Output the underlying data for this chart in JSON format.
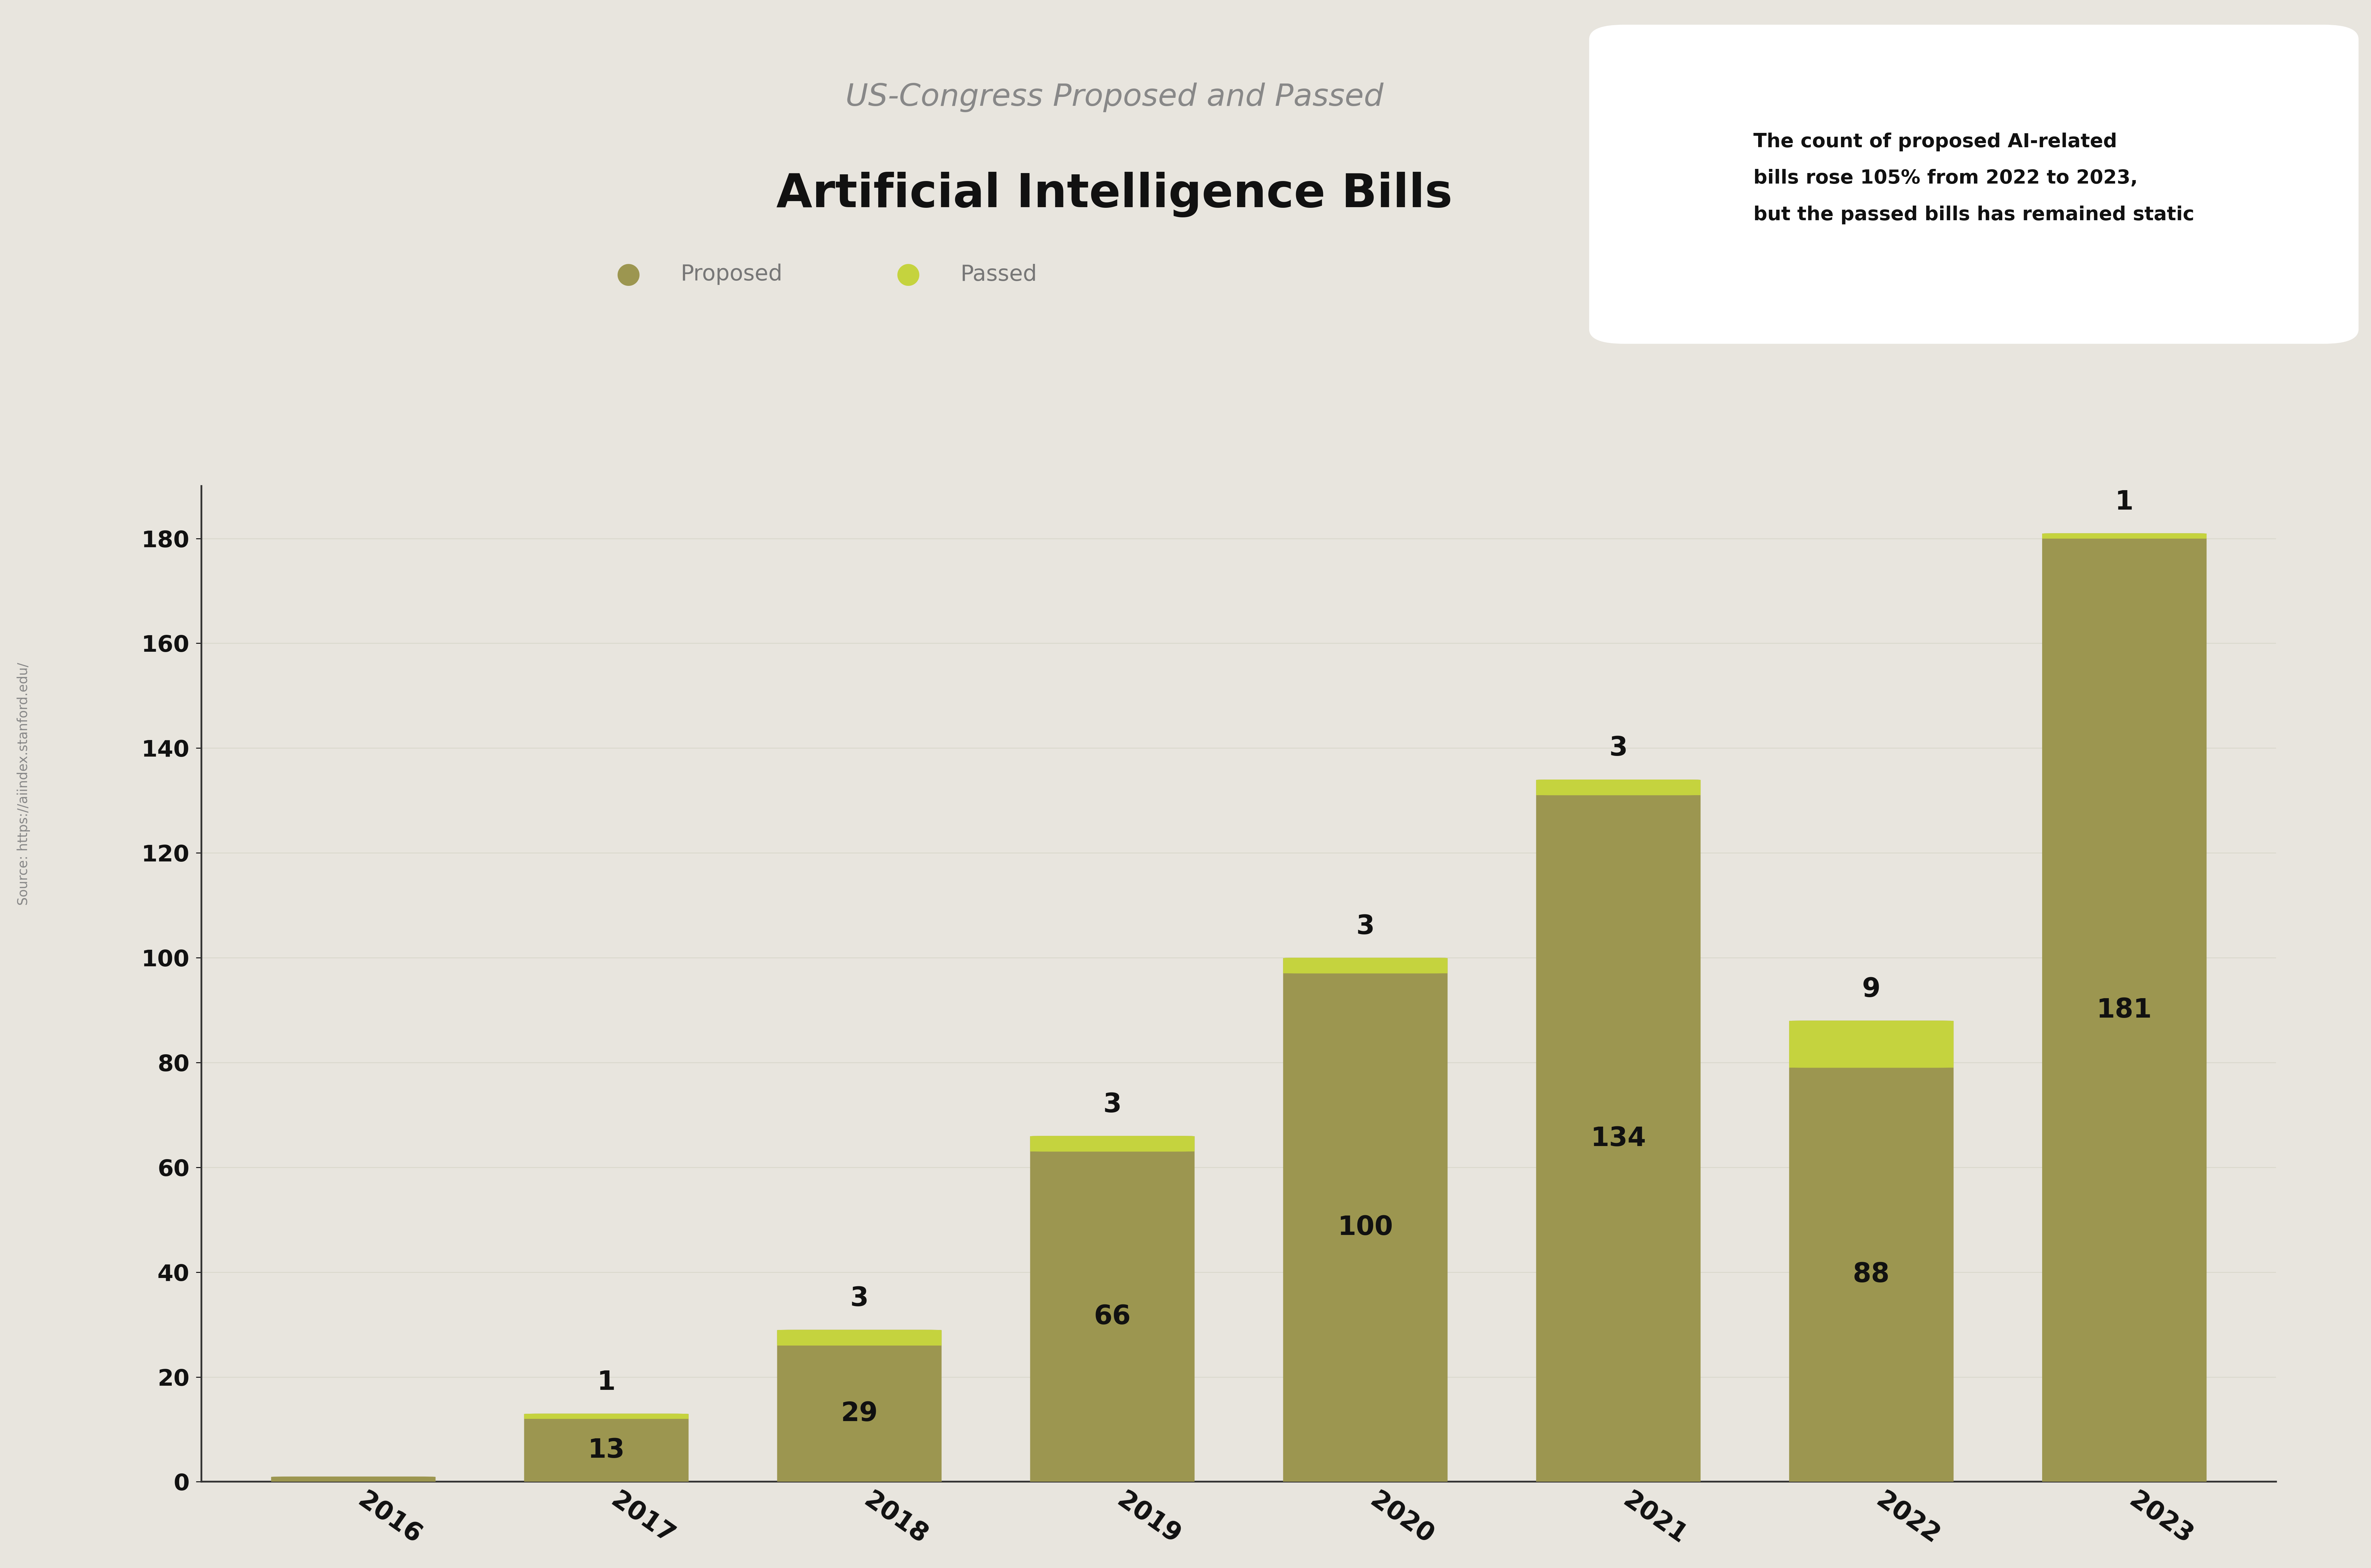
{
  "years": [
    "2016",
    "2017",
    "2018",
    "2019",
    "2020",
    "2021",
    "2022",
    "2023"
  ],
  "proposed": [
    1,
    13,
    29,
    66,
    100,
    134,
    88,
    181
  ],
  "passed": [
    0,
    1,
    3,
    3,
    3,
    3,
    9,
    1
  ],
  "proposed_color": "#9c9650",
  "passed_color": "#c5d33e",
  "background_color": "#e8e5de",
  "title_top": "US-Congress Proposed and Passed",
  "title_main": "Artificial Intelligence Bills",
  "legend_proposed": "Proposed",
  "legend_passed": "Passed",
  "annotation_text": "The count of proposed AI-related\nbills rose 105% from 2022 to 2023,\nbut the passed bills has remained static",
  "source_text": "Source: https://aiindex.stanford.edu/",
  "ylim": [
    0,
    190
  ],
  "yticks": [
    0,
    20,
    40,
    60,
    80,
    100,
    120,
    140,
    160,
    180
  ],
  "bar_width": 0.65,
  "title_top_color": "#888888",
  "title_main_color": "#111111",
  "tick_label_color": "#111111",
  "value_label_color": "#111111",
  "bar_inner_label_color": "#111111",
  "annotation_box_color": "#ffffff",
  "annotation_text_color": "#111111",
  "source_color": "#888888",
  "spine_color": "#333333",
  "grid_color": "#ccccbb"
}
